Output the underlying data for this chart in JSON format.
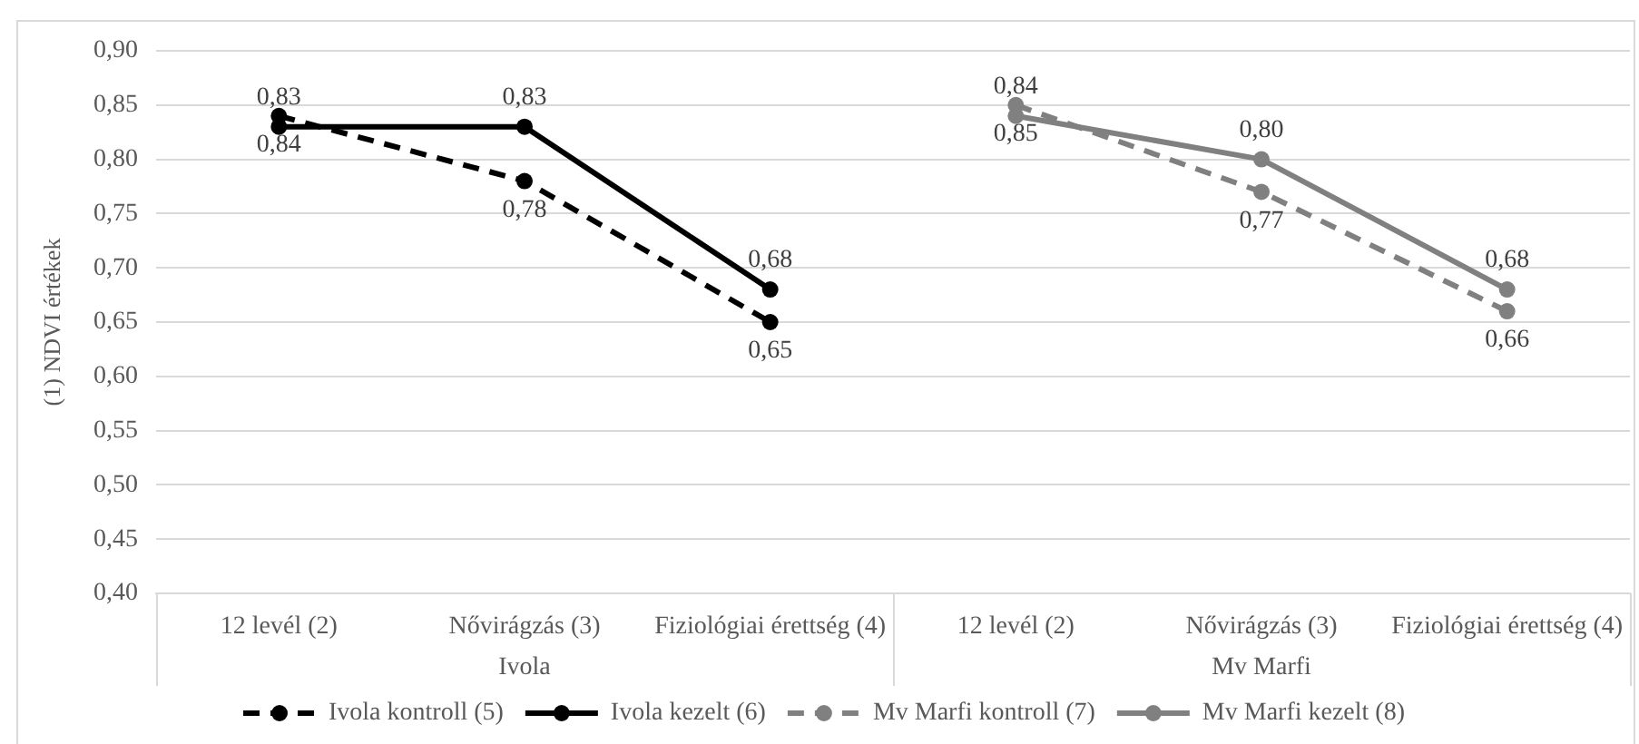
{
  "chart_data": {
    "type": "line",
    "ylabel": "(1) NDVI értékek",
    "categories": [
      "12 levél (2)",
      "Nővirágzás (3)",
      "Fiziológiai érettség (4)",
      "12 levél (2)",
      "Nővirágzás (3)",
      "Fiziológiai érettség (4)"
    ],
    "annotations": [
      "Ivola",
      "Mv Marfi"
    ],
    "series": [
      {
        "name": "Ivola kontroll (5)",
        "color": "#000000",
        "line_style": "dashed",
        "values": [
          0.84,
          0.78,
          0.65,
          null,
          null,
          null
        ],
        "value_labels": [
          "0,84",
          "0,78",
          "0,65",
          null,
          null,
          null
        ]
      },
      {
        "name": "Ivola kezelt (6)",
        "color": "#000000",
        "line_style": "solid",
        "values": [
          0.83,
          0.83,
          0.68,
          null,
          null,
          null
        ],
        "value_labels": [
          "0,83",
          "0,83",
          "0,68",
          null,
          null,
          null
        ]
      },
      {
        "name": "Mv Marfi kontroll (7)",
        "color": "#808080",
        "line_style": "dashed",
        "values": [
          null,
          null,
          null,
          0.85,
          0.77,
          0.66
        ],
        "value_labels": [
          null,
          null,
          null,
          "0,85",
          "0,77",
          "0,66"
        ]
      },
      {
        "name": "Mv Marfi kezelt (8)",
        "color": "#808080",
        "line_style": "solid",
        "values": [
          null,
          null,
          null,
          0.84,
          0.8,
          0.68
        ],
        "value_labels": [
          null,
          null,
          null,
          "0,84",
          "0,80",
          "0,68"
        ]
      }
    ],
    "ylim": [
      0.4,
      0.9
    ],
    "yticks": [
      {
        "value": 0.4,
        "label": "0,40"
      },
      {
        "value": 0.45,
        "label": "0,45"
      },
      {
        "value": 0.5,
        "label": "0,50"
      },
      {
        "value": 0.55,
        "label": "0,55"
      },
      {
        "value": 0.6,
        "label": "0,60"
      },
      {
        "value": 0.65,
        "label": "0,65"
      },
      {
        "value": 0.7,
        "label": "0,70"
      },
      {
        "value": 0.75,
        "label": "0,75"
      },
      {
        "value": 0.8,
        "label": "0,80"
      },
      {
        "value": 0.85,
        "label": "0,85"
      },
      {
        "value": 0.9,
        "label": "0,90"
      }
    ],
    "grid": "y",
    "legend": "bottom",
    "marker": "circle"
  }
}
